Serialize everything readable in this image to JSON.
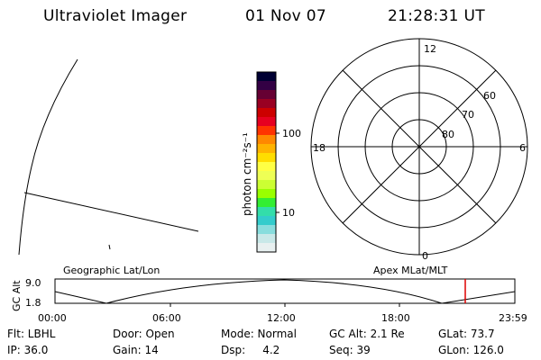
{
  "header": {
    "title": "Ultraviolet Imager",
    "date": "01 Nov 07",
    "time": "21:28:31 UT"
  },
  "colorbar": {
    "unit_label": "photon cm⁻²s⁻¹",
    "tick_labels": [
      "100",
      "10"
    ],
    "colors": [
      "#000033",
      "#330044",
      "#660033",
      "#990022",
      "#cc0000",
      "#e60020",
      "#ff3300",
      "#ff8800",
      "#ffb300",
      "#ffdd00",
      "#ffff44",
      "#eeff55",
      "#ccff33",
      "#99ff00",
      "#33ee33",
      "#33ddaa",
      "#33cccc",
      "#88dddd",
      "#c8e8e8",
      "#e8f0f0"
    ]
  },
  "polar_plot": {
    "mlt_labels": {
      "top": "12",
      "right": "6",
      "bottom": "0",
      "left": "18"
    },
    "lat_labels": [
      "60",
      "70",
      "80"
    ]
  },
  "timeline": {
    "left_title": "Geographic Lat/Lon",
    "right_title": "Apex MLat/MLT",
    "axis_label": "GC Alt",
    "y_ticks": [
      "9.0",
      "1.8"
    ],
    "x_ticks": [
      "00:00",
      "06:00",
      "12:00",
      "18:00",
      "23:59"
    ],
    "marker_color": "#dd0000"
  },
  "info": {
    "flt": "Flt: LBHL",
    "door": "Door: Open",
    "mode": "Mode: Normal",
    "gc_alt": "GC Alt: 2.1 Re",
    "glat": "GLat: 73.7",
    "ip": "IP: 36.0",
    "gain": "Gain: 14",
    "dsp": "Dsp:     4.2",
    "seq": "Seq: 39",
    "glon": "GLon: 126.0"
  }
}
